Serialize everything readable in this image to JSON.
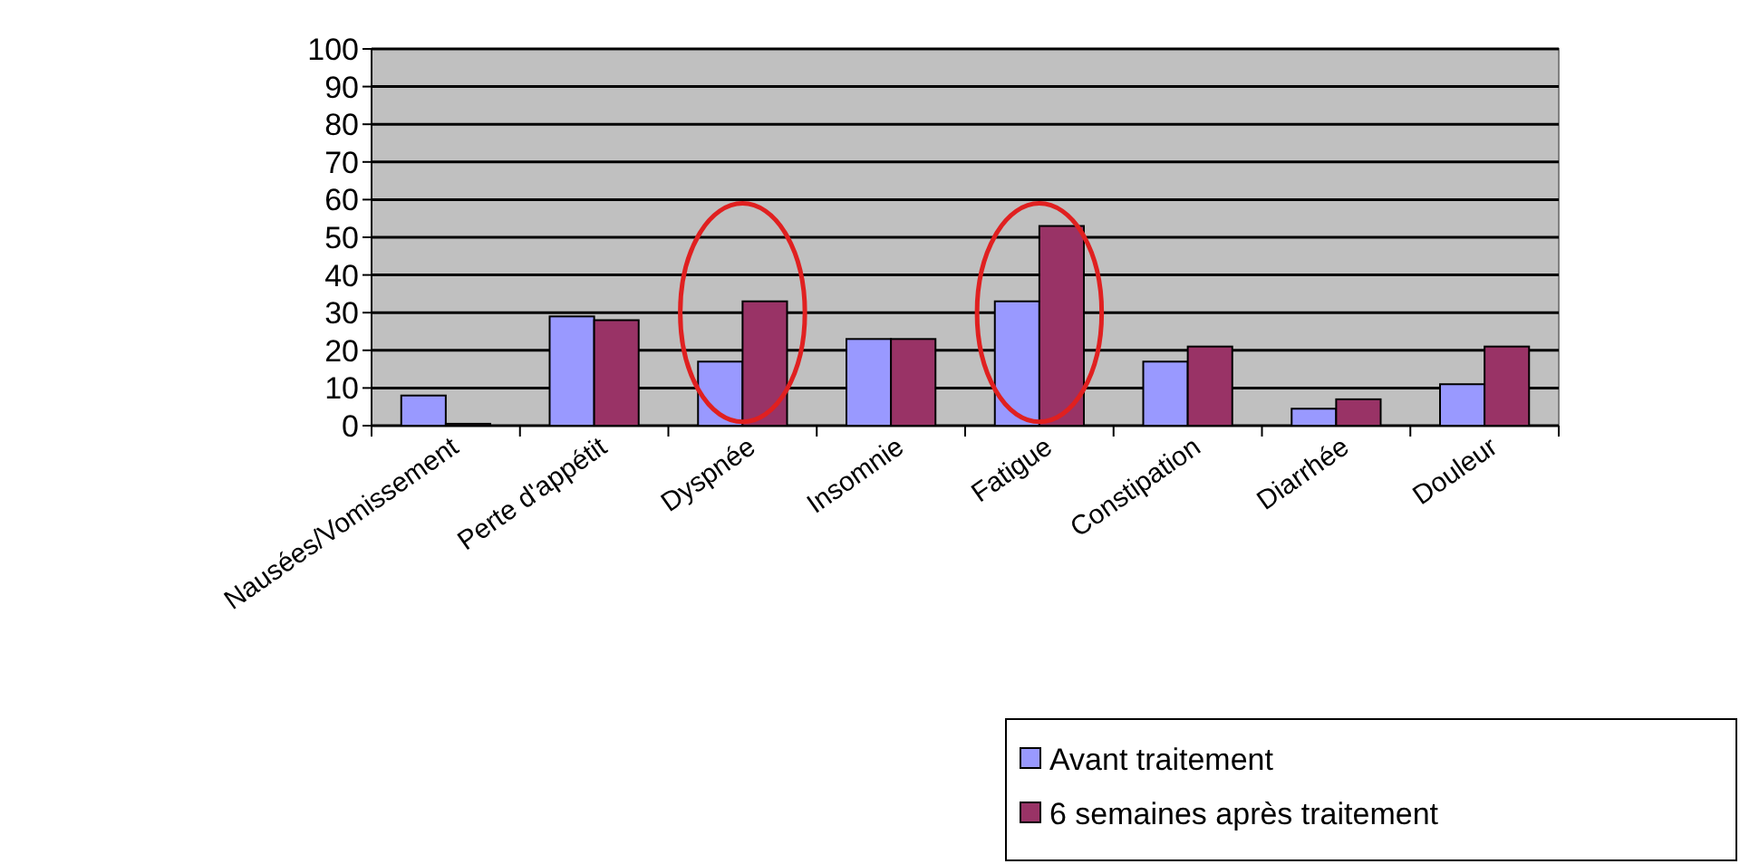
{
  "chart_data": {
    "type": "bar",
    "categories": [
      "Nausées/Vomissement",
      "Perte d'appétit",
      "Dyspnée",
      "Insomnie",
      "Fatigue",
      "Constipation",
      "Diarrhée",
      "Douleur"
    ],
    "series": [
      {
        "name": "Avant traitement",
        "color": "#9999ff",
        "values": [
          8,
          29,
          17,
          23,
          33,
          17,
          4.5,
          11
        ]
      },
      {
        "name": "6 semaines après traitement",
        "color": "#993366",
        "values": [
          0.5,
          28,
          33,
          23,
          53,
          21,
          7,
          21
        ]
      }
    ],
    "ylim": [
      0,
      100
    ],
    "yticks": [
      0,
      10,
      20,
      30,
      40,
      50,
      60,
      70,
      80,
      90,
      100
    ],
    "grid": "y",
    "legend": "bottom right"
  }
}
